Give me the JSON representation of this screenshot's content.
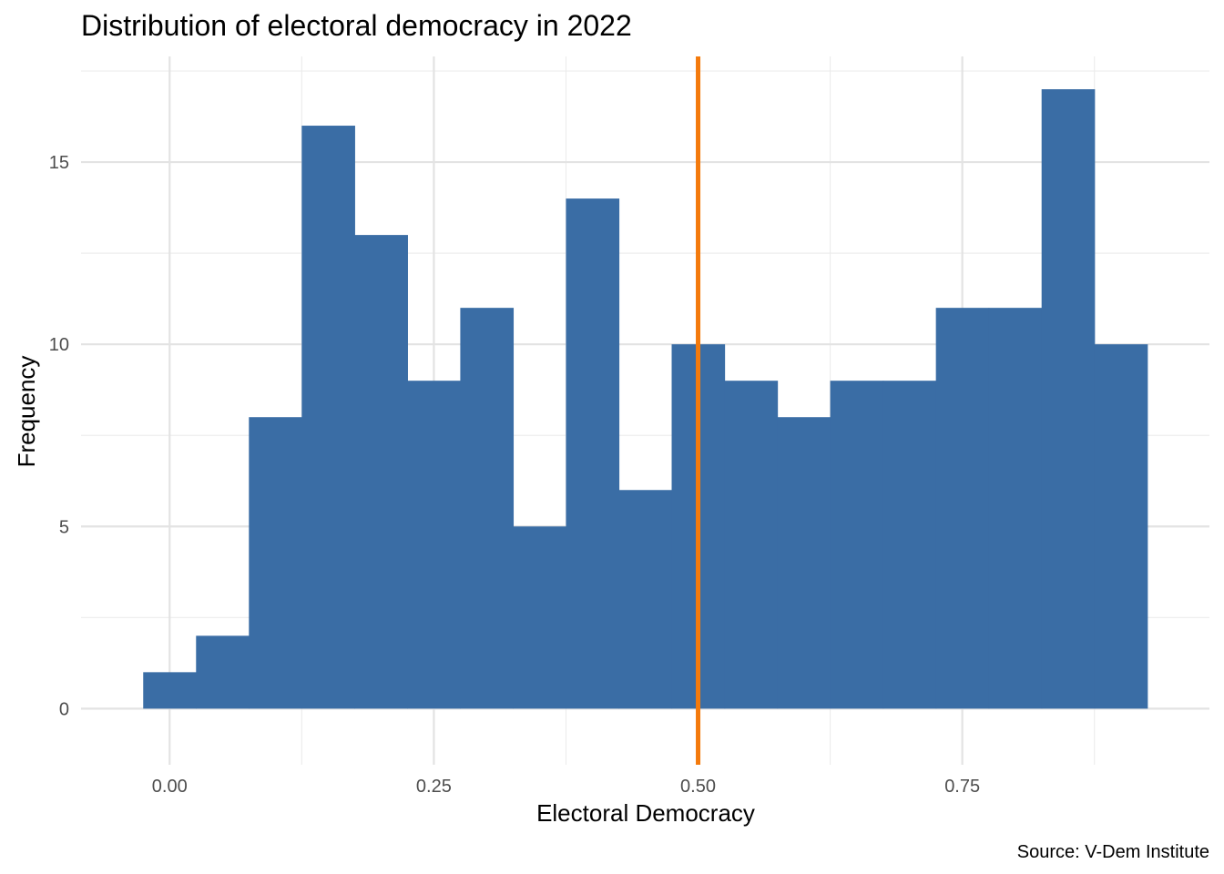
{
  "chart_data": {
    "type": "bar",
    "subtype": "histogram",
    "title": "Distribution of electoral democracy in 2022",
    "xlabel": "Electoral Democracy",
    "ylabel": "Frequency",
    "caption": "Source: V-Dem Institute",
    "bin_width": 0.05,
    "bins": [
      {
        "start": -0.025,
        "end": 0.025,
        "count": 1
      },
      {
        "start": 0.025,
        "end": 0.075,
        "count": 2
      },
      {
        "start": 0.075,
        "end": 0.125,
        "count": 8
      },
      {
        "start": 0.125,
        "end": 0.175,
        "count": 16
      },
      {
        "start": 0.175,
        "end": 0.225,
        "count": 13
      },
      {
        "start": 0.225,
        "end": 0.275,
        "count": 9
      },
      {
        "start": 0.275,
        "end": 0.325,
        "count": 11
      },
      {
        "start": 0.325,
        "end": 0.375,
        "count": 5
      },
      {
        "start": 0.375,
        "end": 0.425,
        "count": 14
      },
      {
        "start": 0.425,
        "end": 0.475,
        "count": 6
      },
      {
        "start": 0.475,
        "end": 0.525,
        "count": 10
      },
      {
        "start": 0.525,
        "end": 0.575,
        "count": 9
      },
      {
        "start": 0.575,
        "end": 0.625,
        "count": 8
      },
      {
        "start": 0.625,
        "end": 0.675,
        "count": 9
      },
      {
        "start": 0.675,
        "end": 0.725,
        "count": 9
      },
      {
        "start": 0.725,
        "end": 0.775,
        "count": 11
      },
      {
        "start": 0.775,
        "end": 0.825,
        "count": 11
      },
      {
        "start": 0.825,
        "end": 0.875,
        "count": 17
      },
      {
        "start": 0.875,
        "end": 0.925,
        "count": 10
      }
    ],
    "vline": {
      "x": 0.5,
      "color": "#f47a0c"
    },
    "bar_color": "#3a6da5",
    "xlim": [
      -0.0838,
      0.9838
    ],
    "ylim": [
      -1.54,
      17.9
    ],
    "x_ticks": [
      0,
      0.25,
      0.5,
      0.75
    ],
    "x_tick_labels": [
      "0.00",
      "0.25",
      "0.50",
      "0.75"
    ],
    "y_ticks": [
      0,
      5,
      10,
      15
    ],
    "y_tick_labels": [
      "0",
      "5",
      "10",
      "15"
    ],
    "grid": true
  }
}
